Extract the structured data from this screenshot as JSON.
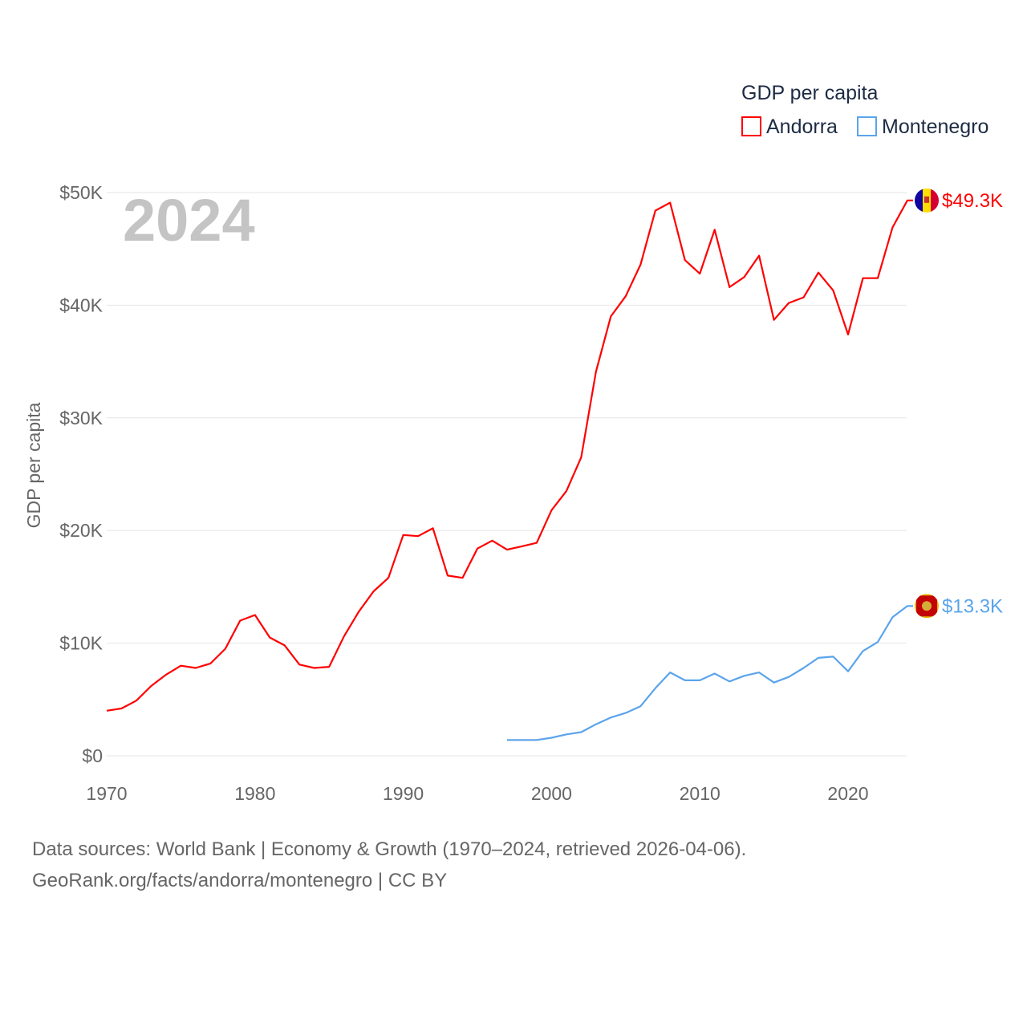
{
  "chart_data": {
    "type": "line",
    "title": "",
    "year_label": "2024",
    "ylabel": "GDP per capita",
    "xlabel": "",
    "xlim": [
      1970,
      2024
    ],
    "ylim": [
      0,
      50000
    ],
    "x_ticks": [
      1970,
      1980,
      1990,
      2000,
      2010,
      2020
    ],
    "y_ticks": [
      {
        "value": 0,
        "label": "$0"
      },
      {
        "value": 10000,
        "label": "$10K"
      },
      {
        "value": 20000,
        "label": "$20K"
      },
      {
        "value": 30000,
        "label": "$30K"
      },
      {
        "value": 40000,
        "label": "$40K"
      },
      {
        "value": 50000,
        "label": "$50K"
      }
    ],
    "grid": true,
    "legend": {
      "title": "GDP per capita",
      "placement": "top-right"
    },
    "series": [
      {
        "name": "Andorra",
        "color": "#ff0000",
        "end_label": "$49.3K",
        "start_year": 1970,
        "values": [
          4000,
          4200,
          4900,
          6200,
          7200,
          8000,
          7800,
          8200,
          9500,
          12000,
          12500,
          10500,
          9800,
          8100,
          7800,
          7900,
          10600,
          12800,
          14600,
          15800,
          19600,
          19500,
          20200,
          16000,
          15800,
          18400,
          19100,
          18300,
          18600,
          18900,
          21800,
          23500,
          26500,
          34100,
          39000,
          40800,
          43600,
          48400,
          49100,
          44000,
          42800,
          46700,
          41600,
          42500,
          44400,
          38700,
          40200,
          40700,
          42900,
          41300,
          37400,
          42400,
          42400,
          46900,
          49300
        ]
      },
      {
        "name": "Montenegro",
        "color": "#5ba4ec",
        "end_label": "$13.3K",
        "start_year": 1997,
        "values": [
          1400,
          1400,
          1400,
          1600,
          1900,
          2100,
          2800,
          3400,
          3800,
          4400,
          6000,
          7400,
          6700,
          6700,
          7300,
          6600,
          7100,
          7400,
          6500,
          7000,
          7800,
          8700,
          8800,
          7500,
          9300,
          10100,
          12300,
          13300
        ]
      }
    ]
  },
  "footer": {
    "line1": "Data sources: World Bank | Economy & Growth (1970–2024, retrieved 2026-04-06).",
    "line2": "GeoRank.org/facts/andorra/montenegro | CC BY"
  }
}
